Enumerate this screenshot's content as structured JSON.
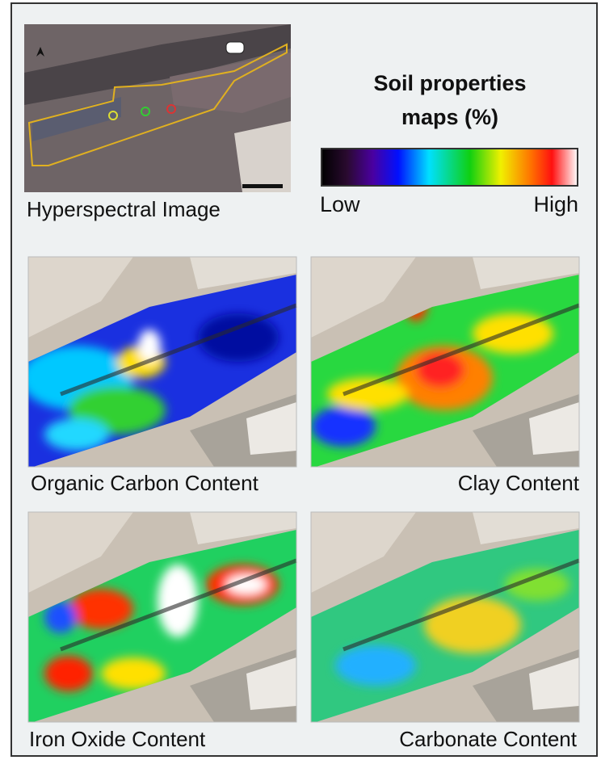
{
  "figure": {
    "image_caption": "Hyperspectral Image",
    "legend": {
      "title": "Soil properties maps (%)",
      "low": "Low",
      "high": "High"
    },
    "maps": [
      {
        "caption": "Organic Carbon Content"
      },
      {
        "caption": "Clay Content"
      },
      {
        "caption": "Iron Oxide Content"
      },
      {
        "caption": "Carbonate Content"
      }
    ]
  }
}
